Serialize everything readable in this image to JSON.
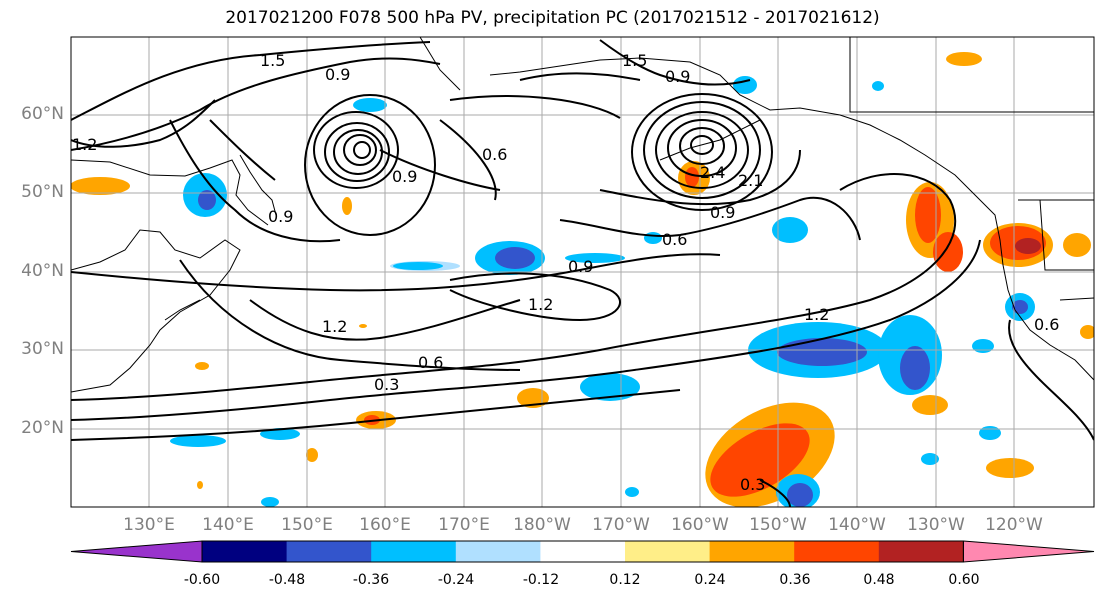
{
  "title": "2017021200 F078 500 hPa PV, precipitation PC (2017021512 - 2017021612)",
  "lat_labels": [
    "60°N",
    "50°N",
    "40°N",
    "30°N",
    "20°N"
  ],
  "lon_labels": [
    "130°E",
    "140°E",
    "150°E",
    "160°E",
    "170°E",
    "180°W",
    "170°W",
    "160°W",
    "150°W",
    "140°W",
    "130°W",
    "120°W"
  ],
  "contour_labels": [
    "1.5",
    "0.9",
    "1.2",
    "1.5",
    "0.9",
    "0.6",
    "0.9",
    "0.9",
    "0.6",
    "0.9",
    "1.2",
    "1.2",
    "1.2",
    "0.6",
    "0.3",
    "0.3",
    "2.4",
    "2.1",
    "0.6",
    "0.9"
  ],
  "colorbar": {
    "ticks": [
      "-0.60",
      "-0.48",
      "-0.36",
      "-0.24",
      "-0.12",
      "0.12",
      "0.24",
      "0.36",
      "0.48",
      "0.60"
    ],
    "colors": [
      "#9933cc",
      "#000080",
      "#3355cc",
      "#00bfff",
      "#b0e0ff",
      "#ffffff",
      "#ffee88",
      "#ffa500",
      "#ff4500",
      "#b22222",
      "#ff88b0"
    ]
  }
}
